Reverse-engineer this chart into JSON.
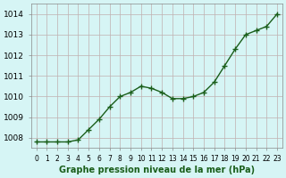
{
  "x": [
    0,
    1,
    2,
    3,
    4,
    5,
    6,
    7,
    8,
    9,
    10,
    11,
    12,
    13,
    14,
    15,
    16,
    17,
    18,
    19,
    20,
    21,
    22,
    23
  ],
  "y": [
    1007.8,
    1007.8,
    1007.8,
    1007.8,
    1007.9,
    1008.4,
    1008.9,
    1009.5,
    1010.0,
    1010.2,
    1010.5,
    1010.4,
    1010.2,
    1009.9,
    1009.9,
    1010.0,
    1010.2,
    1010.7,
    1011.5,
    1012.3,
    1013.0,
    1013.2,
    1013.4,
    1014.0
  ],
  "line_color": "#1a5e1a",
  "marker_color": "#1a5e1a",
  "bg_color": "#d6f5f5",
  "grid_color": "#c0b0b0",
  "xlabel": "Graphe pression niveau de la mer (hPa)",
  "xlabel_color": "#1a5e1a",
  "ylim": [
    1007.5,
    1014.5
  ],
  "xlim": [
    -0.5,
    23.5
  ],
  "yticks": [
    1008,
    1009,
    1010,
    1011,
    1012,
    1013,
    1014
  ],
  "xtick_labels": [
    "0",
    "1",
    "2",
    "3",
    "4",
    "5",
    "6",
    "7",
    "8",
    "9",
    "10",
    "11",
    "12",
    "13",
    "14",
    "15",
    "16",
    "17",
    "18",
    "19",
    "20",
    "21",
    "22",
    "23"
  ]
}
